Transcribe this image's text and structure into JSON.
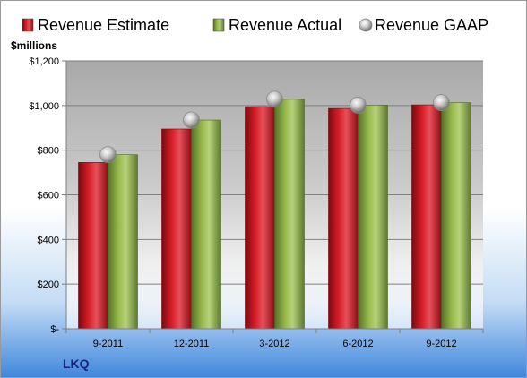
{
  "chart_data": {
    "type": "bar",
    "company": "LKQ",
    "unit_label": "$millions",
    "categories": [
      "9-2011",
      "12-2011",
      "3-2012",
      "6-2012",
      "9-2012"
    ],
    "series": [
      {
        "name": "Revenue Estimate",
        "kind": "bar",
        "color": "#c8141e",
        "values": [
          745,
          895,
          995,
          987,
          1003
        ]
      },
      {
        "name": "Revenue Actual",
        "kind": "bar",
        "color": "#8aab3c",
        "values": [
          780,
          935,
          1028,
          1002,
          1013
        ]
      },
      {
        "name": "Revenue GAAP",
        "kind": "marker",
        "color": "#b4b4b4",
        "values": [
          780,
          935,
          1028,
          1002,
          1013
        ]
      }
    ],
    "y_ticks": [
      {
        "value": 0,
        "label": "$-"
      },
      {
        "value": 200,
        "label": "$200"
      },
      {
        "value": 400,
        "label": "$400"
      },
      {
        "value": 600,
        "label": "$600"
      },
      {
        "value": 800,
        "label": "$800"
      },
      {
        "value": 1000,
        "label": "$1,000"
      },
      {
        "value": 1200,
        "label": "$1,200"
      }
    ],
    "ylim": [
      0,
      1200
    ],
    "grid": true,
    "legend_position": "top"
  }
}
